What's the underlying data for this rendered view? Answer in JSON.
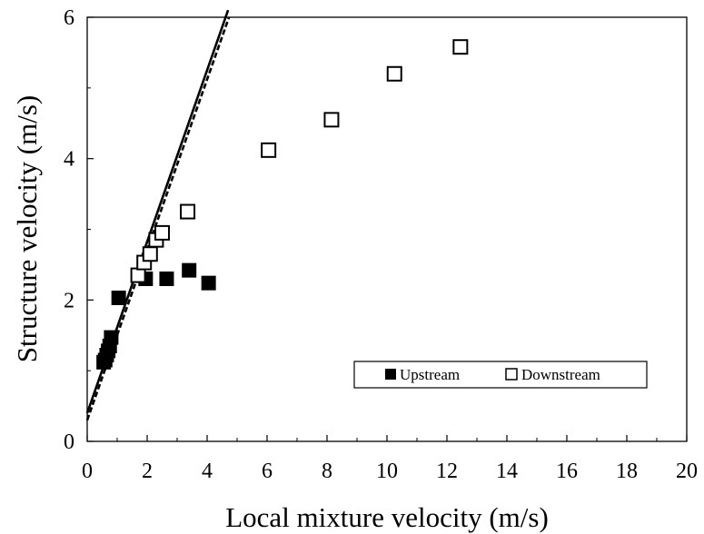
{
  "chart_data": {
    "type": "scatter",
    "title": "",
    "xlabel": "Local mixture velocity (m/s)",
    "ylabel": "Structure velocity (m/s)",
    "xlim": [
      0,
      20
    ],
    "ylim": [
      0,
      6
    ],
    "xticks": [
      "0",
      "2",
      "4",
      "6",
      "8",
      "10",
      "12",
      "14",
      "16",
      "18",
      "20"
    ],
    "yticks": [
      "0",
      "2",
      "4",
      "6"
    ],
    "series": [
      {
        "name": "Upstream",
        "marker": "filled-square",
        "color": "#000000",
        "x": [
          0.55,
          0.6,
          0.65,
          0.7,
          0.75,
          0.8,
          1.05,
          1.95,
          2.65,
          3.4,
          4.05
        ],
        "y": [
          1.12,
          1.15,
          1.22,
          1.28,
          1.35,
          1.47,
          2.03,
          2.3,
          2.3,
          2.42,
          2.24
        ]
      },
      {
        "name": "Downstream",
        "marker": "open-square",
        "color": "#000000",
        "x": [
          1.7,
          1.9,
          2.1,
          2.3,
          2.5,
          3.35,
          6.05,
          8.15,
          10.25,
          12.45
        ],
        "y": [
          2.35,
          2.53,
          2.65,
          2.85,
          2.95,
          3.25,
          4.12,
          4.55,
          5.2,
          5.58
        ]
      }
    ],
    "lines": [
      {
        "style": "solid",
        "x": [
          0,
          4.7
        ],
        "y": [
          0.4,
          6.1
        ]
      },
      {
        "style": "dashed",
        "x": [
          0,
          4.73
        ],
        "y": [
          0.3,
          6.0
        ]
      }
    ],
    "legend": {
      "position": "bottom-right",
      "entries": [
        "Upstream",
        "Downstream"
      ]
    },
    "grid": false
  }
}
